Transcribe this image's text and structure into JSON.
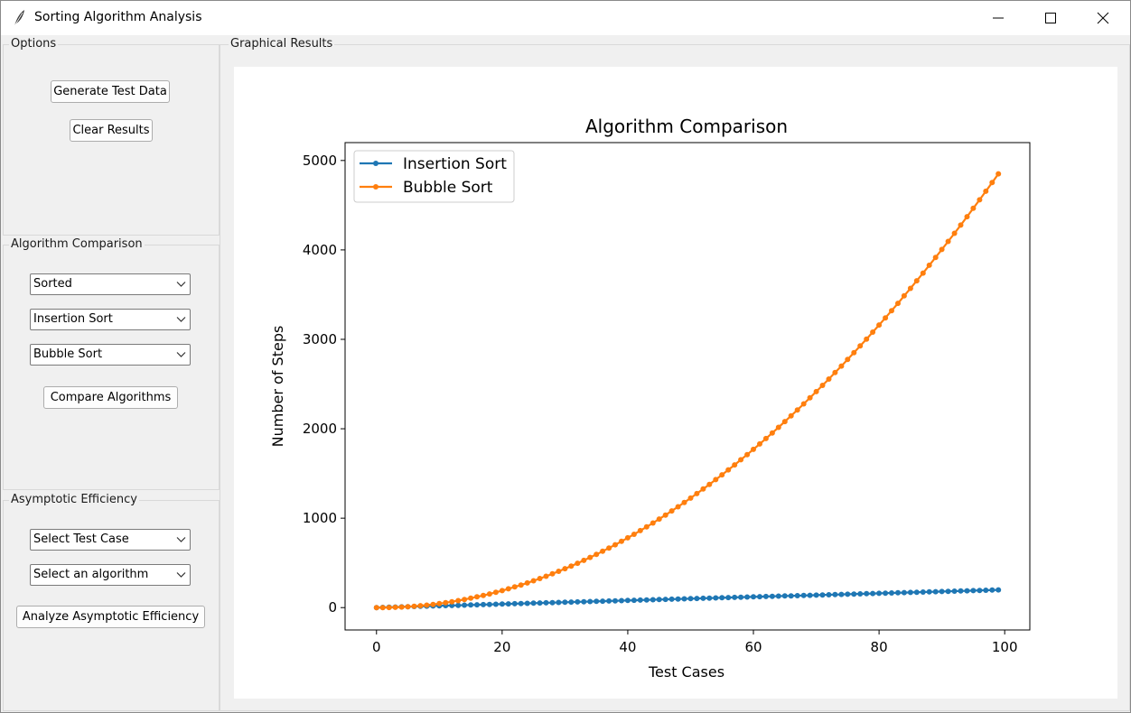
{
  "window": {
    "title": "Sorting Algorithm Analysis",
    "icon": "feather-icon"
  },
  "options": {
    "label": "Options",
    "generate_label": "Generate Test Data",
    "clear_label": "Clear Results"
  },
  "comparison": {
    "label": "Algorithm Comparison",
    "case_value": "Sorted",
    "algo1_value": "Insertion Sort",
    "algo2_value": "Bubble Sort",
    "compare_label": "Compare Algorithms"
  },
  "efficiency": {
    "label": "Asymptotic Efficiency",
    "case_value": "Select Test Case",
    "algo_value": "Select an algorithm",
    "analyze_label": "Analyze Asymptotic Efficiency"
  },
  "results": {
    "label": "Graphical Results"
  },
  "chart_data": {
    "type": "line",
    "title": "Algorithm Comparison",
    "xlabel": "Test Cases",
    "ylabel": "Number of Steps",
    "xlim": [
      -5,
      104
    ],
    "ylim": [
      -250,
      5200
    ],
    "xticks": [
      0,
      20,
      40,
      60,
      80,
      100
    ],
    "yticks": [
      0,
      1000,
      2000,
      3000,
      4000,
      5000
    ],
    "grid": false,
    "legend_position": "top-left",
    "x": [
      0,
      1,
      2,
      3,
      4,
      5,
      6,
      7,
      8,
      9,
      10,
      11,
      12,
      13,
      14,
      15,
      16,
      17,
      18,
      19,
      20,
      21,
      22,
      23,
      24,
      25,
      26,
      27,
      28,
      29,
      30,
      31,
      32,
      33,
      34,
      35,
      36,
      37,
      38,
      39,
      40,
      41,
      42,
      43,
      44,
      45,
      46,
      47,
      48,
      49,
      50,
      51,
      52,
      53,
      54,
      55,
      56,
      57,
      58,
      59,
      60,
      61,
      62,
      63,
      64,
      65,
      66,
      67,
      68,
      69,
      70,
      71,
      72,
      73,
      74,
      75,
      76,
      77,
      78,
      79,
      80,
      81,
      82,
      83,
      84,
      85,
      86,
      87,
      88,
      89,
      90,
      91,
      92,
      93,
      94,
      95,
      96,
      97,
      98,
      99
    ],
    "series": [
      {
        "name": "Insertion Sort",
        "color": "#1f77b4",
        "values": [
          0,
          2,
          4,
          6,
          8,
          10,
          12,
          14,
          16,
          18,
          20,
          22,
          24,
          26,
          28,
          30,
          32,
          34,
          36,
          38,
          40,
          42,
          44,
          46,
          48,
          50,
          52,
          54,
          56,
          58,
          60,
          62,
          64,
          66,
          68,
          70,
          72,
          74,
          76,
          78,
          80,
          82,
          84,
          86,
          88,
          90,
          92,
          94,
          96,
          98,
          100,
          102,
          104,
          106,
          108,
          110,
          112,
          114,
          116,
          118,
          120,
          122,
          124,
          126,
          128,
          130,
          132,
          134,
          136,
          138,
          140,
          142,
          144,
          146,
          148,
          150,
          152,
          154,
          156,
          158,
          160,
          162,
          164,
          166,
          168,
          170,
          172,
          174,
          176,
          178,
          180,
          182,
          184,
          186,
          188,
          190,
          192,
          194,
          196,
          198
        ]
      },
      {
        "name": "Bubble Sort",
        "color": "#ff7f0e",
        "values": [
          0,
          0,
          1,
          3,
          6,
          10,
          15,
          21,
          28,
          36,
          45,
          55,
          66,
          78,
          91,
          105,
          120,
          136,
          153,
          171,
          190,
          210,
          231,
          253,
          276,
          300,
          325,
          351,
          378,
          406,
          435,
          465,
          496,
          528,
          561,
          595,
          630,
          666,
          703,
          741,
          780,
          820,
          861,
          903,
          946,
          990,
          1035,
          1081,
          1128,
          1176,
          1225,
          1275,
          1326,
          1378,
          1431,
          1485,
          1540,
          1596,
          1653,
          1711,
          1770,
          1830,
          1891,
          1953,
          2016,
          2080,
          2145,
          2211,
          2278,
          2346,
          2415,
          2485,
          2556,
          2628,
          2701,
          2775,
          2850,
          2926,
          3003,
          3081,
          3160,
          3240,
          3321,
          3403,
          3486,
          3570,
          3655,
          3741,
          3828,
          3916,
          4005,
          4095,
          4186,
          4278,
          4371,
          4465,
          4560,
          4656,
          4753,
          4851
        ]
      }
    ]
  }
}
